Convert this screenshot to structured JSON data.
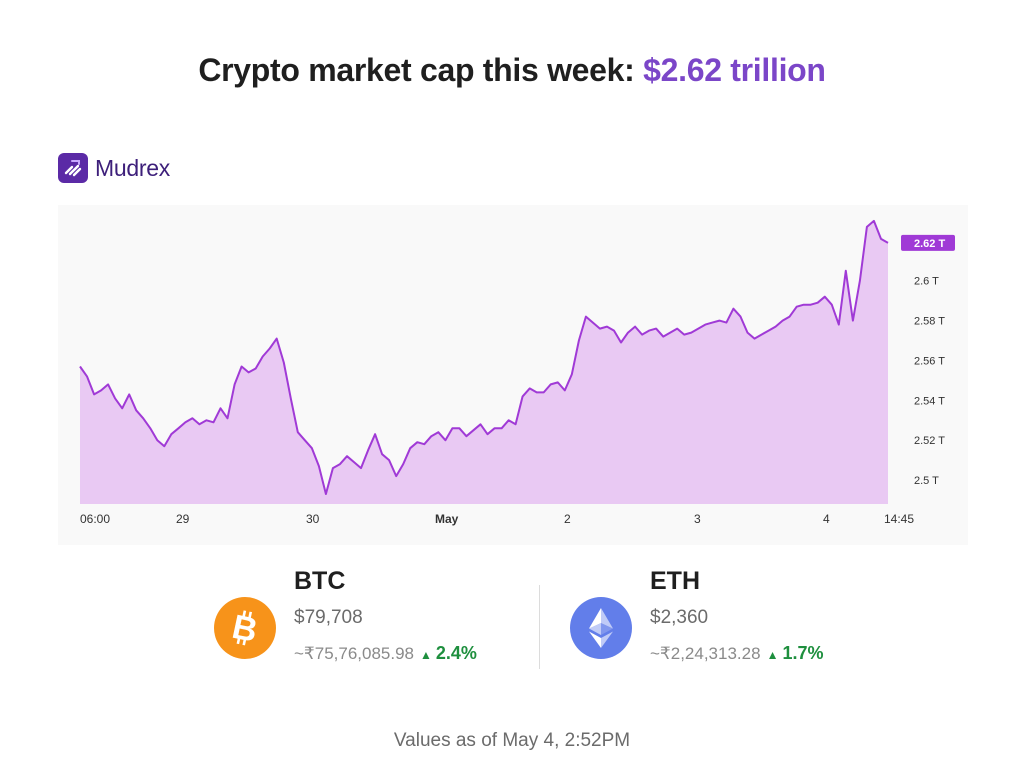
{
  "headline": {
    "prefix": "Crypto market cap this week: ",
    "value": "$2.62 trillion"
  },
  "brand": {
    "name": "Mudrex"
  },
  "colors": {
    "accent": "#7b46c8",
    "line": "#a03ad6",
    "fill": "#e9c9f3",
    "positive": "#1e8f3e"
  },
  "chart_data": {
    "type": "area",
    "title": "",
    "xlabel": "",
    "ylabel": "",
    "grid": false,
    "x_ticks": [
      "06:00",
      "29",
      "30",
      "May",
      "2",
      "3",
      "4",
      "14:45"
    ],
    "y_ticks": [
      "2.5 T",
      "2.52 T",
      "2.54 T",
      "2.56 T",
      "2.58 T",
      "2.6 T"
    ],
    "ylim": [
      2.488,
      2.638
    ],
    "current_value_label": "2.62 T",
    "series": [
      {
        "values": [
          2.557,
          2.552,
          2.543,
          2.545,
          2.548,
          2.541,
          2.536,
          2.543,
          2.535,
          2.531,
          2.526,
          2.52,
          2.517,
          2.523,
          2.526,
          2.529,
          2.531,
          2.528,
          2.53,
          2.529,
          2.536,
          2.531,
          2.548,
          2.557,
          2.554,
          2.556,
          2.562,
          2.566,
          2.571,
          2.559,
          2.541,
          2.524,
          2.52,
          2.516,
          2.507,
          2.493,
          2.506,
          2.508,
          2.512,
          2.509,
          2.506,
          2.515,
          2.523,
          2.513,
          2.51,
          2.502,
          2.508,
          2.516,
          2.519,
          2.518,
          2.522,
          2.524,
          2.52,
          2.526,
          2.526,
          2.522,
          2.525,
          2.528,
          2.523,
          2.526,
          2.526,
          2.53,
          2.528,
          2.542,
          2.546,
          2.544,
          2.544,
          2.548,
          2.549,
          2.545,
          2.553,
          2.57,
          2.582,
          2.579,
          2.576,
          2.577,
          2.575,
          2.569,
          2.574,
          2.577,
          2.573,
          2.575,
          2.576,
          2.572,
          2.574,
          2.576,
          2.573,
          2.574,
          2.576,
          2.578,
          2.579,
          2.58,
          2.579,
          2.586,
          2.582,
          2.574,
          2.571,
          2.573,
          2.575,
          2.577,
          2.58,
          2.582,
          2.587,
          2.588,
          2.588,
          2.589,
          2.592,
          2.588,
          2.578,
          2.605,
          2.58,
          2.6,
          2.627,
          2.63,
          2.621,
          2.619
        ]
      }
    ]
  },
  "coins": [
    {
      "symbol": "BTC",
      "usd": "$79,708",
      "inr": "~₹75,76,085.98",
      "change": "2.4%",
      "direction": "up",
      "icon": "bitcoin-icon"
    },
    {
      "symbol": "ETH",
      "usd": "$2,360",
      "inr": "~₹2,24,313.28",
      "change": "1.7%",
      "direction": "up",
      "icon": "ethereum-icon"
    }
  ],
  "footnote": "Values as of May 4, 2:52PM"
}
